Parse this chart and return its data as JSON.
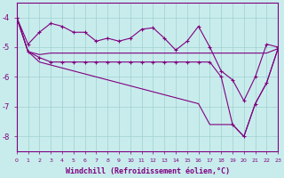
{
  "xlabel": "Windchill (Refroidissement éolien,°C)",
  "xlim": [
    0,
    23
  ],
  "ylim": [
    -8.5,
    -3.5
  ],
  "yticks": [
    -8,
    -7,
    -6,
    -5,
    -4
  ],
  "xticks": [
    0,
    1,
    2,
    3,
    4,
    5,
    6,
    7,
    8,
    9,
    10,
    11,
    12,
    13,
    14,
    15,
    16,
    17,
    18,
    19,
    20,
    21,
    22,
    23
  ],
  "line_color": "#800080",
  "bg_color": "#c8ecec",
  "grid_color": "#a0d0d0",
  "lines_xy": [
    {
      "x": [
        0,
        1,
        2,
        3,
        4,
        5,
        6,
        7,
        8,
        9,
        10,
        11,
        12,
        13,
        14,
        15,
        16,
        17,
        18,
        19,
        20,
        21,
        22,
        23
      ],
      "y": [
        -4.0,
        -4.9,
        -4.5,
        -4.2,
        -4.3,
        -4.5,
        -4.5,
        -4.8,
        -4.7,
        -4.8,
        -4.7,
        -4.4,
        -4.35,
        -4.7,
        -5.1,
        -4.8,
        -4.3,
        -5.0,
        -5.8,
        -6.1,
        -6.8,
        -6.0,
        -4.9,
        -5.0
      ],
      "marker": true
    },
    {
      "x": [
        0,
        1,
        2,
        3,
        4,
        5,
        6,
        7,
        8,
        9,
        10,
        11,
        12,
        13,
        14,
        15,
        16,
        17,
        18,
        19,
        20,
        21,
        22,
        23
      ],
      "y": [
        -4.0,
        -5.15,
        -5.25,
        -5.2,
        -5.2,
        -5.2,
        -5.2,
        -5.2,
        -5.2,
        -5.2,
        -5.2,
        -5.2,
        -5.2,
        -5.2,
        -5.2,
        -5.2,
        -5.2,
        -5.2,
        -5.2,
        -5.2,
        -5.2,
        -5.2,
        -5.2,
        -5.05
      ],
      "marker": false
    },
    {
      "x": [
        0,
        1,
        2,
        3,
        4,
        5,
        6,
        7,
        8,
        9,
        10,
        11,
        12,
        13,
        14,
        15,
        16,
        17,
        18,
        19,
        20,
        21,
        22,
        23
      ],
      "y": [
        -4.0,
        -5.15,
        -5.35,
        -5.5,
        -5.5,
        -5.5,
        -5.5,
        -5.5,
        -5.5,
        -5.5,
        -5.5,
        -5.5,
        -5.5,
        -5.5,
        -5.5,
        -5.5,
        -5.5,
        -5.5,
        -6.0,
        -7.6,
        -8.0,
        -6.9,
        -6.2,
        -5.05
      ],
      "marker": true
    },
    {
      "x": [
        0,
        1,
        2,
        3,
        4,
        5,
        6,
        7,
        8,
        9,
        10,
        11,
        12,
        13,
        14,
        15,
        16,
        17,
        18,
        19,
        20,
        21,
        22,
        23
      ],
      "y": [
        -4.0,
        -5.15,
        -5.5,
        -5.6,
        -5.7,
        -5.8,
        -5.9,
        -6.0,
        -6.1,
        -6.2,
        -6.3,
        -6.4,
        -6.5,
        -6.6,
        -6.7,
        -6.8,
        -6.9,
        -7.6,
        -7.6,
        -7.6,
        -8.0,
        -6.9,
        -6.2,
        -5.05
      ],
      "marker": false
    }
  ],
  "xlabel_fontsize": 6,
  "ytick_fontsize": 6,
  "xtick_fontsize": 4.5
}
